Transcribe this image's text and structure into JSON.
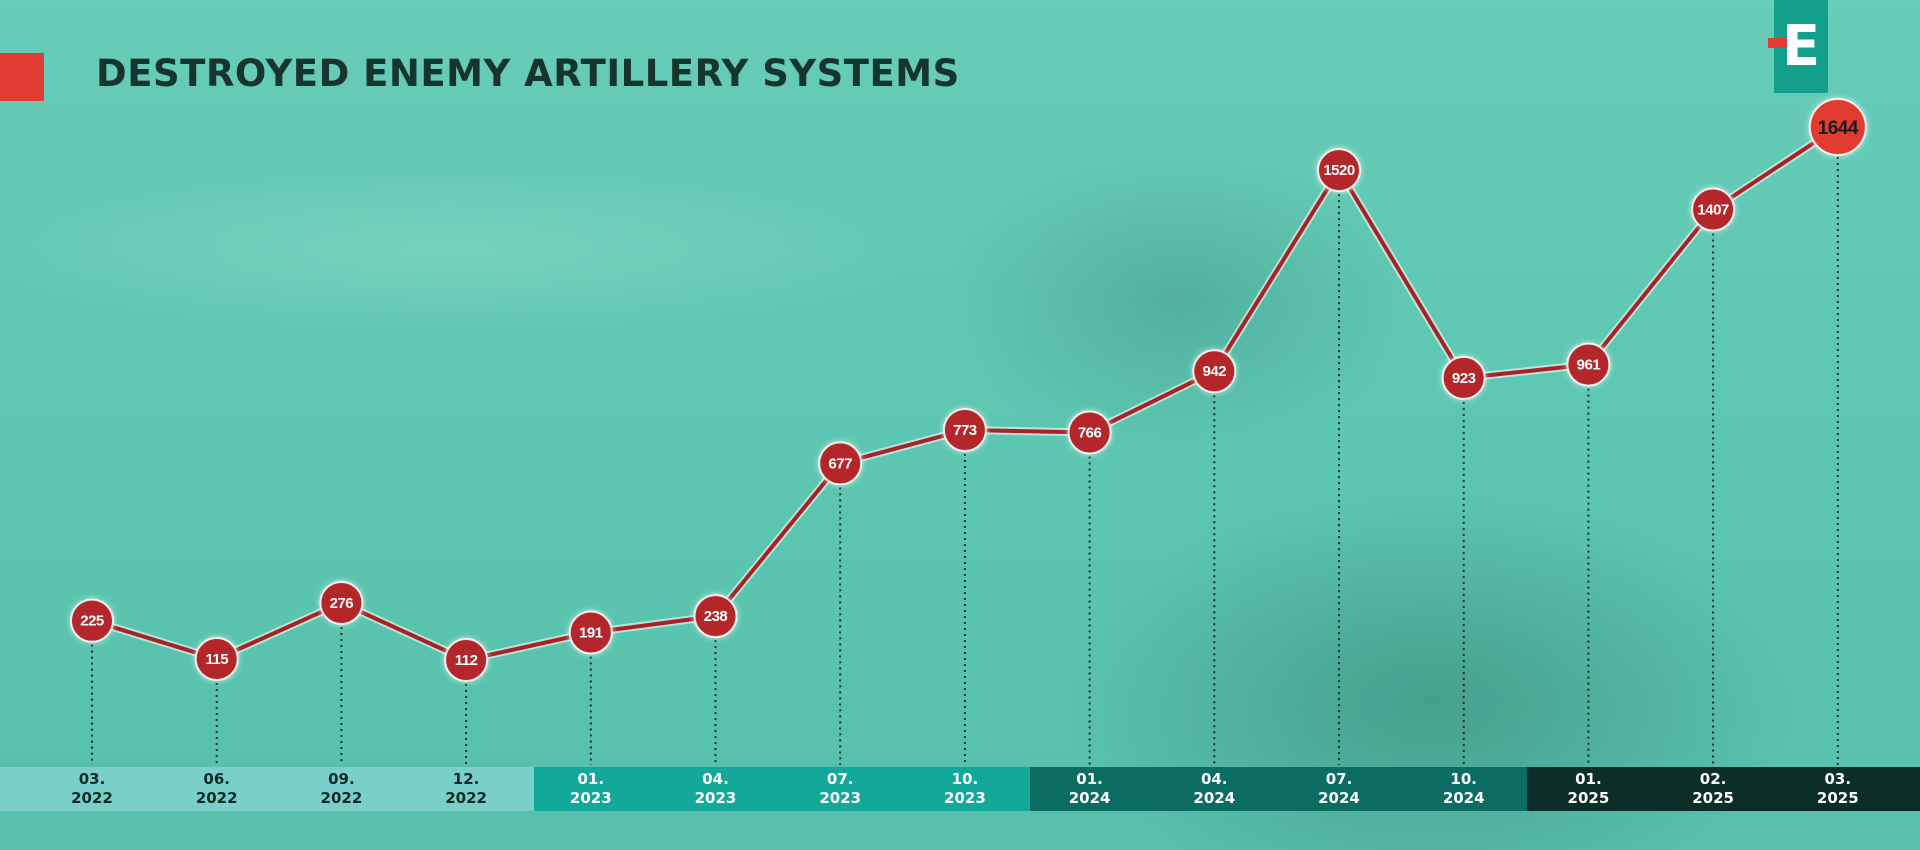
{
  "title": "DESTROYED ENEMY ARTILLERY SYSTEMS",
  "logo": {
    "letter": "E"
  },
  "colors": {
    "accent_red": "#e23b33",
    "marker_red": "#b3262c",
    "line_red": "#a82125",
    "band_2022": "#7acfc8",
    "band_2023": "#12a89a",
    "band_2024": "#0b6d62",
    "band_2025": "#0b2e28",
    "title": "#16352f"
  },
  "chart_data": {
    "type": "line",
    "title": "DESTROYED ENEMY ARTILLERY SYSTEMS",
    "categories": [
      {
        "month": "03.",
        "year": "2022"
      },
      {
        "month": "06.",
        "year": "2022"
      },
      {
        "month": "09.",
        "year": "2022"
      },
      {
        "month": "12.",
        "year": "2022"
      },
      {
        "month": "01.",
        "year": "2023"
      },
      {
        "month": "04.",
        "year": "2023"
      },
      {
        "month": "07.",
        "year": "2023"
      },
      {
        "month": "10.",
        "year": "2023"
      },
      {
        "month": "01.",
        "year": "2024"
      },
      {
        "month": "04.",
        "year": "2024"
      },
      {
        "month": "07.",
        "year": "2024"
      },
      {
        "month": "10.",
        "year": "2024"
      },
      {
        "month": "01.",
        "year": "2025"
      },
      {
        "month": "02.",
        "year": "2025"
      },
      {
        "month": "03.",
        "year": "2025"
      }
    ],
    "series": [
      {
        "values": [
          225,
          115,
          276,
          112,
          191,
          238,
          677,
          773,
          766,
          942,
          1520,
          923,
          961,
          1407,
          1644
        ]
      }
    ],
    "data_labels": [
      "225",
      "115",
      "276",
      "112",
      "191",
      "238",
      "677",
      "773",
      "766",
      "942",
      "1520",
      "923",
      "961",
      "1407",
      "1644"
    ],
    "highlight_last": true,
    "grid": false,
    "legend": "none"
  }
}
